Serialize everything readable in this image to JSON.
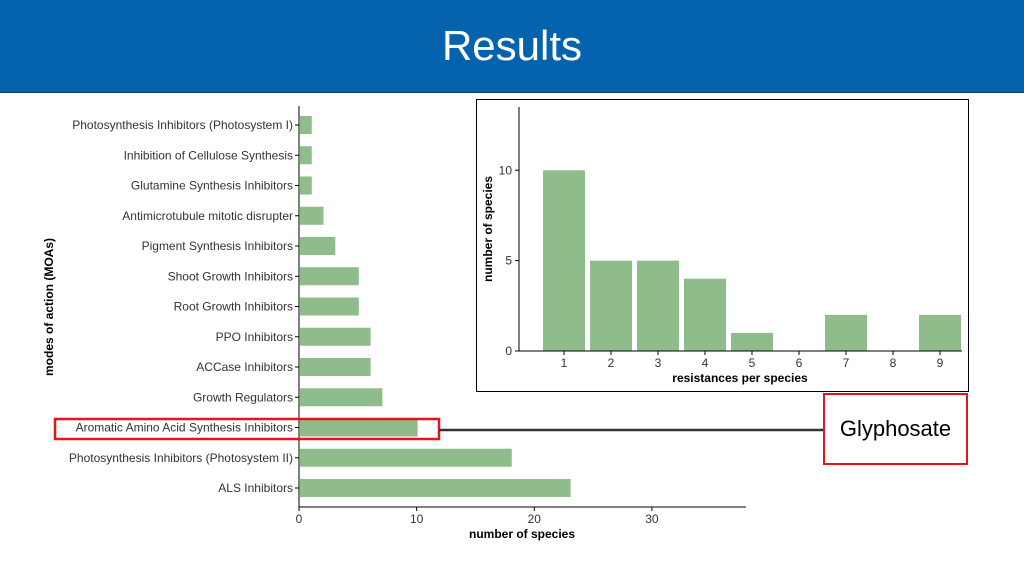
{
  "slide": {
    "title": "Results"
  },
  "callout": {
    "label": "Glyphosate"
  },
  "colors": {
    "header": "#0563ad",
    "bar": "#8fbc8b",
    "highlight": "#e3151a"
  },
  "chart_data": [
    {
      "type": "bar",
      "orientation": "horizontal",
      "categories": [
        "Photosynthesis Inhibitors (Photosystem I)",
        "Inhibition of Cellulose Synthesis",
        "Glutamine Synthesis Inhibitors",
        "Antimicrotubule mitotic disrupter",
        "Pigment Synthesis Inhibitors",
        "Shoot Growth Inhibitors",
        "Root Growth Inhibitors",
        "PPO Inhibitors",
        "ACCase Inhibitors",
        "Growth Regulators",
        "Aromatic Amino Acid Synthesis Inhibitors",
        "Photosynthesis Inhibitors (Photosystem II)",
        "ALS Inhibitors"
      ],
      "values": [
        1,
        1,
        1,
        2,
        3,
        5,
        5,
        6,
        6,
        7,
        10,
        18,
        23
      ],
      "xlabel": "number of species",
      "ylabel": "modes of action (MOAs)",
      "xlim": [
        0,
        38
      ],
      "xticks": [
        0,
        10,
        20,
        30
      ],
      "highlight_category": "Aromatic Amino Acid Synthesis Inhibitors",
      "grid": false
    },
    {
      "type": "bar",
      "categories": [
        "1",
        "2",
        "3",
        "4",
        "5",
        "6",
        "7",
        "8",
        "9"
      ],
      "values": [
        10,
        5,
        5,
        4,
        1,
        0,
        2,
        0,
        2
      ],
      "xlabel": "resistances per species",
      "ylabel": "number of species",
      "ylim": [
        0,
        13.5
      ],
      "yticks": [
        0,
        5,
        10
      ],
      "grid": false
    }
  ]
}
